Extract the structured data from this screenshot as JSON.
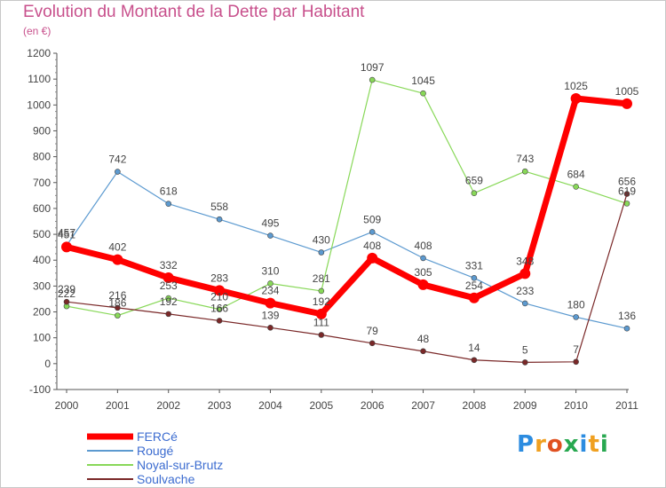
{
  "chart_data": {
    "type": "line",
    "title": "Evolution du Montant de la Dette par Habitant",
    "subtitle": "(en €)",
    "categories": [
      "2000",
      "2001",
      "2002",
      "2003",
      "2004",
      "2005",
      "2006",
      "2007",
      "2008",
      "2009",
      "2010",
      "2011"
    ],
    "ylim": [
      -100,
      1200
    ],
    "yticks": [
      -100,
      0,
      100,
      200,
      300,
      400,
      500,
      600,
      700,
      800,
      900,
      1000,
      1100,
      1200
    ],
    "grid": false,
    "legend_position": "bottom-left",
    "series": [
      {
        "name": "FERCé",
        "color": "#ff0000",
        "values": [
          451,
          402,
          332,
          283,
          234,
          192,
          408,
          305,
          254,
          348,
          1025,
          1005
        ]
      },
      {
        "name": "Rougé",
        "color": "#5c9ad0",
        "values": [
          457,
          742,
          618,
          558,
          495,
          430,
          509,
          408,
          331,
          233,
          180,
          136
        ]
      },
      {
        "name": "Noyal-sur-Brutz",
        "color": "#88d858",
        "values": [
          222,
          186,
          253,
          210,
          310,
          281,
          1097,
          1045,
          659,
          743,
          684,
          619
        ]
      },
      {
        "name": "Soulvache",
        "color": "#7a2828",
        "values": [
          239,
          216,
          192,
          166,
          139,
          111,
          79,
          48,
          14,
          5,
          7,
          656
        ]
      }
    ]
  },
  "legend_text_color": "#3c6cd0",
  "logo": {
    "letters": [
      "P",
      "r",
      "o",
      "x",
      "i",
      "t",
      "i"
    ],
    "colors": [
      "#2c8ce0",
      "#f0a020",
      "#e05020",
      "#28a850",
      "#2c8ce0",
      "#f0a020",
      "#28a850"
    ]
  }
}
